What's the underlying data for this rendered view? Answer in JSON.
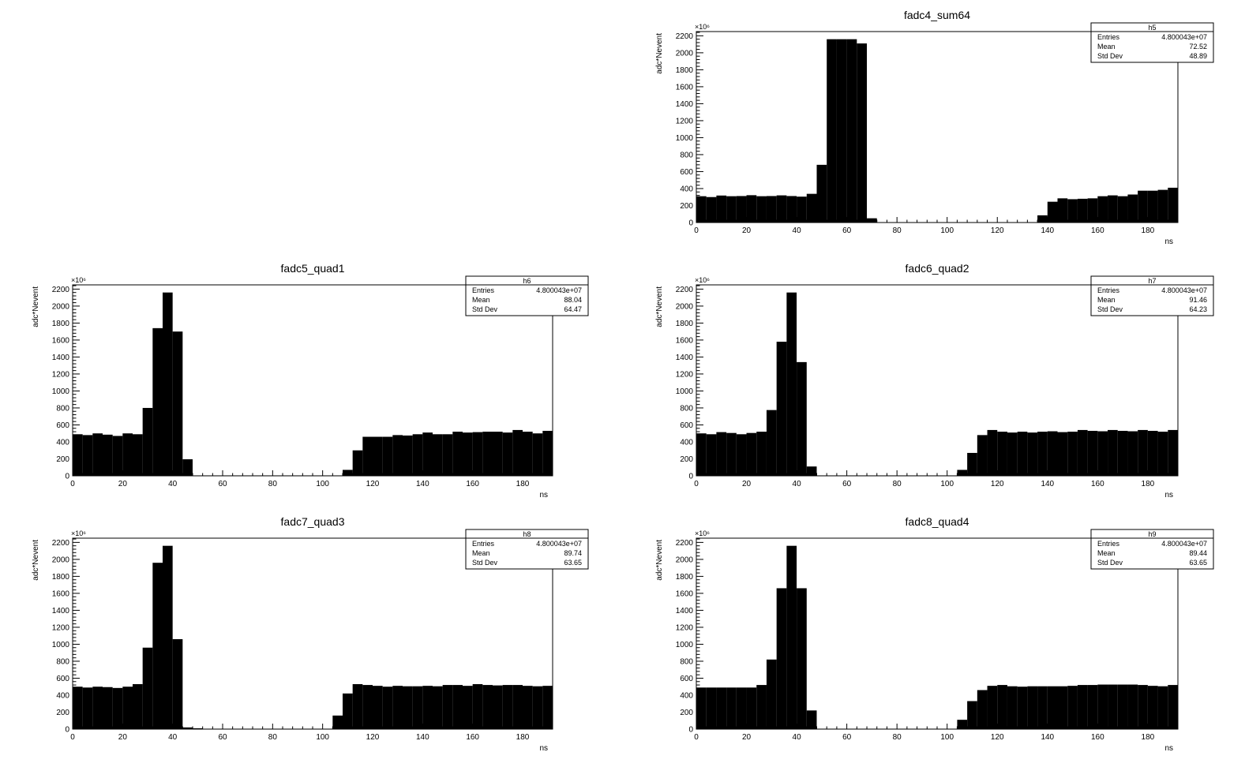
{
  "panels": [
    {
      "id": "h5",
      "title": "fadc4_sum64",
      "stats": {
        "name": "h5",
        "rows": [
          {
            "label": "Entries",
            "value": "4.800043e+07"
          },
          {
            "label": "Mean",
            "value": "72.52"
          },
          {
            "label": "Std Dev",
            "value": "48.89"
          }
        ]
      }
    },
    {
      "id": "h6",
      "title": "fadc5_quad1",
      "stats": {
        "name": "h6",
        "rows": [
          {
            "label": "Entries",
            "value": "4.800043e+07"
          },
          {
            "label": "Mean",
            "value": "88.04"
          },
          {
            "label": "Std Dev",
            "value": "64.47"
          }
        ]
      }
    },
    {
      "id": "h7",
      "title": "fadc6_quad2",
      "stats": {
        "name": "h7",
        "rows": [
          {
            "label": "Entries",
            "value": "4.800043e+07"
          },
          {
            "label": "Mean",
            "value": "91.46"
          },
          {
            "label": "Std Dev",
            "value": "64.23"
          }
        ]
      }
    },
    {
      "id": "h8",
      "title": "fadc7_quad3",
      "stats": {
        "name": "h8",
        "rows": [
          {
            "label": "Entries",
            "value": "4.800043e+07"
          },
          {
            "label": "Mean",
            "value": "89.74"
          },
          {
            "label": "Std Dev",
            "value": "63.65"
          }
        ]
      }
    },
    {
      "id": "h9",
      "title": "fadc8_quad4",
      "stats": {
        "name": "h9",
        "rows": [
          {
            "label": "Entries",
            "value": "4.800043e+07"
          },
          {
            "label": "Mean",
            "value": "89.44"
          },
          {
            "label": "Std Dev",
            "value": "63.65"
          }
        ]
      }
    }
  ],
  "chart_data": [
    {
      "type": "bar",
      "name": "h5",
      "title": "fadc4_sum64",
      "xlabel": "ns",
      "ylabel": "adc*Nevent",
      "y_multiplier": "×10⁶",
      "xlim": [
        0,
        192
      ],
      "ylim": [
        0,
        2250
      ],
      "bin_width": 4,
      "x_ticks": [
        0,
        20,
        40,
        60,
        80,
        100,
        120,
        140,
        160,
        180
      ],
      "y_ticks": [
        0,
        200,
        400,
        600,
        800,
        1000,
        1200,
        1400,
        1600,
        1800,
        2000,
        2200
      ],
      "values": [
        310,
        300,
        318,
        310,
        312,
        322,
        310,
        312,
        320,
        312,
        305,
        338,
        680,
        2160,
        2160,
        2160,
        2110,
        50,
        0,
        0,
        0,
        0,
        0,
        0,
        0,
        0,
        0,
        0,
        0,
        0,
        0,
        0,
        0,
        0,
        85,
        245,
        285,
        275,
        280,
        285,
        310,
        320,
        310,
        330,
        375,
        375,
        385,
        410
      ]
    },
    {
      "type": "bar",
      "name": "h6",
      "title": "fadc5_quad1",
      "xlabel": "ns",
      "ylabel": "adc*Nevent",
      "y_multiplier": "×10⁶",
      "xlim": [
        0,
        192
      ],
      "ylim": [
        0,
        2250
      ],
      "bin_width": 4,
      "x_ticks": [
        0,
        20,
        40,
        60,
        80,
        100,
        120,
        140,
        160,
        180
      ],
      "y_ticks": [
        0,
        200,
        400,
        600,
        800,
        1000,
        1200,
        1400,
        1600,
        1800,
        2000,
        2200
      ],
      "values": [
        490,
        480,
        500,
        485,
        470,
        500,
        490,
        800,
        1740,
        2160,
        1700,
        195,
        5,
        5,
        5,
        5,
        5,
        5,
        5,
        5,
        5,
        5,
        5,
        5,
        5,
        5,
        5,
        70,
        300,
        460,
        460,
        460,
        480,
        475,
        490,
        510,
        490,
        490,
        520,
        510,
        515,
        520,
        520,
        510,
        540,
        520,
        500,
        530
      ]
    },
    {
      "type": "bar",
      "name": "h7",
      "title": "fadc6_quad2",
      "xlabel": "ns",
      "ylabel": "adc*Nevent",
      "y_multiplier": "×10⁶",
      "xlim": [
        0,
        192
      ],
      "ylim": [
        0,
        2250
      ],
      "bin_width": 4,
      "x_ticks": [
        0,
        20,
        40,
        60,
        80,
        100,
        120,
        140,
        160,
        180
      ],
      "y_ticks": [
        0,
        200,
        400,
        600,
        800,
        1000,
        1200,
        1400,
        1600,
        1800,
        2000,
        2200
      ],
      "values": [
        500,
        490,
        515,
        505,
        490,
        505,
        520,
        775,
        1580,
        2160,
        1340,
        110,
        5,
        5,
        5,
        5,
        5,
        5,
        5,
        5,
        5,
        5,
        5,
        5,
        5,
        5,
        70,
        270,
        480,
        540,
        520,
        510,
        520,
        510,
        520,
        525,
        515,
        520,
        540,
        530,
        525,
        540,
        530,
        525,
        540,
        530,
        520,
        540
      ]
    },
    {
      "type": "bar",
      "name": "h8",
      "title": "fadc7_quad3",
      "xlabel": "ns",
      "ylabel": "adc*Nevent",
      "y_multiplier": "×10⁶",
      "xlim": [
        0,
        192
      ],
      "ylim": [
        0,
        2250
      ],
      "bin_width": 4,
      "x_ticks": [
        0,
        20,
        40,
        60,
        80,
        100,
        120,
        140,
        160,
        180
      ],
      "y_ticks": [
        0,
        200,
        400,
        600,
        800,
        1000,
        1200,
        1400,
        1600,
        1800,
        2000,
        2200
      ],
      "values": [
        500,
        490,
        500,
        495,
        485,
        500,
        530,
        960,
        1960,
        2160,
        1060,
        20,
        10,
        5,
        5,
        5,
        5,
        5,
        5,
        5,
        5,
        5,
        5,
        5,
        5,
        5,
        160,
        420,
        530,
        520,
        510,
        500,
        510,
        505,
        505,
        510,
        505,
        520,
        520,
        510,
        530,
        520,
        515,
        520,
        520,
        510,
        505,
        510
      ]
    },
    {
      "type": "bar",
      "name": "h9",
      "title": "fadc8_quad4",
      "xlabel": "ns",
      "ylabel": "adc*Nevent",
      "y_multiplier": "×10⁶",
      "xlim": [
        0,
        192
      ],
      "ylim": [
        0,
        2250
      ],
      "bin_width": 4,
      "x_ticks": [
        0,
        20,
        40,
        60,
        80,
        100,
        120,
        140,
        160,
        180
      ],
      "y_ticks": [
        0,
        200,
        400,
        600,
        800,
        1000,
        1200,
        1400,
        1600,
        1800,
        2000,
        2200
      ],
      "values": [
        490,
        490,
        490,
        490,
        490,
        490,
        520,
        820,
        1660,
        2160,
        1660,
        220,
        5,
        5,
        5,
        5,
        5,
        5,
        5,
        5,
        5,
        5,
        5,
        5,
        5,
        5,
        110,
        330,
        460,
        510,
        520,
        505,
        500,
        505,
        505,
        505,
        505,
        510,
        520,
        520,
        525,
        525,
        525,
        525,
        520,
        510,
        505,
        520
      ]
    }
  ]
}
